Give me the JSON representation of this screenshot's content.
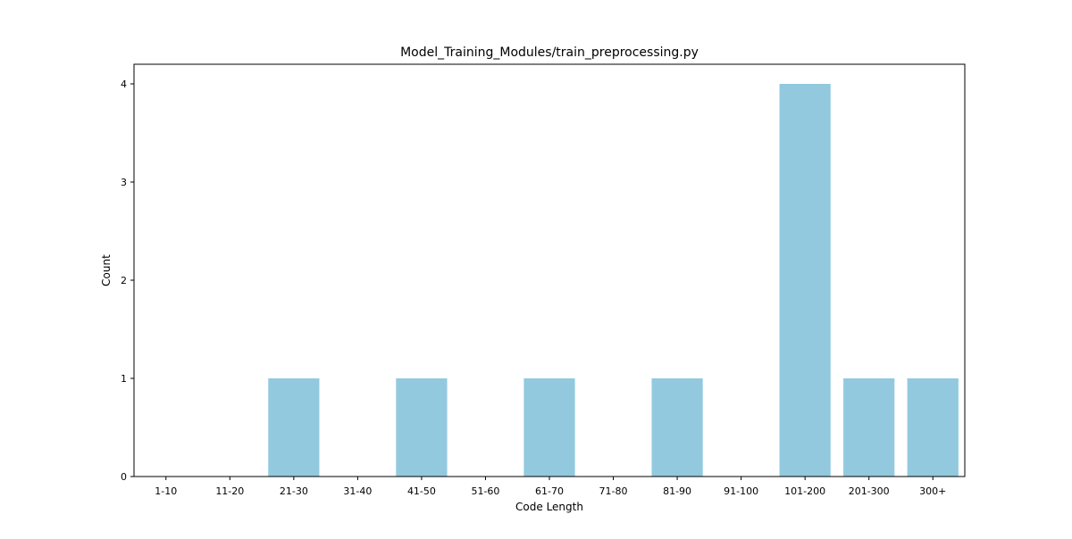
{
  "chart_data": {
    "type": "bar",
    "title": "Model_Training_Modules/train_preprocessing.py",
    "xlabel": "Code Length",
    "ylabel": "Count",
    "categories": [
      "1-10",
      "11-20",
      "21-30",
      "31-40",
      "41-50",
      "51-60",
      "61-70",
      "71-80",
      "81-90",
      "91-100",
      "101-200",
      "201-300",
      "300+"
    ],
    "values": [
      0,
      0,
      1,
      0,
      1,
      0,
      1,
      0,
      1,
      0,
      4,
      1,
      1
    ],
    "ylim": [
      0,
      4.2
    ],
    "yticks": [
      0,
      1,
      2,
      3,
      4
    ],
    "grid": false,
    "bar_color": "#92c9df"
  }
}
